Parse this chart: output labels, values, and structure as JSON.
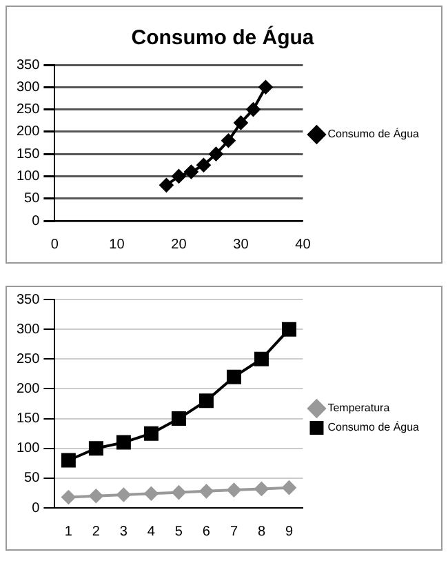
{
  "chart_data": [
    {
      "type": "line",
      "title": "Consumo de Água",
      "x": [
        18,
        20,
        22,
        24,
        26,
        28,
        30,
        32,
        34
      ],
      "series": [
        {
          "name": "Consumo de Água",
          "color": "#000000",
          "marker": "diamond",
          "values": [
            80,
            100,
            110,
            125,
            150,
            180,
            220,
            250,
            300
          ]
        }
      ],
      "xlim": [
        0,
        40
      ],
      "xticks": [
        0,
        10,
        20,
        30,
        40
      ],
      "ylim": [
        0,
        350
      ],
      "yticks": [
        0,
        50,
        100,
        150,
        200,
        250,
        300,
        350
      ],
      "grid": "y",
      "legend": "right"
    },
    {
      "type": "line",
      "categories": [
        "1",
        "2",
        "3",
        "4",
        "5",
        "6",
        "7",
        "8",
        "9"
      ],
      "series": [
        {
          "name": "Temperatura",
          "color": "#999999",
          "marker": "diamond",
          "values": [
            18,
            20,
            22,
            24,
            26,
            28,
            30,
            32,
            34
          ]
        },
        {
          "name": "Consumo de Água",
          "color": "#000000",
          "marker": "square",
          "values": [
            80,
            100,
            110,
            125,
            150,
            180,
            220,
            250,
            300
          ]
        }
      ],
      "ylim": [
        0,
        350
      ],
      "yticks": [
        0,
        50,
        100,
        150,
        200,
        250,
        300,
        350
      ],
      "grid": "y",
      "legend": "right"
    }
  ]
}
